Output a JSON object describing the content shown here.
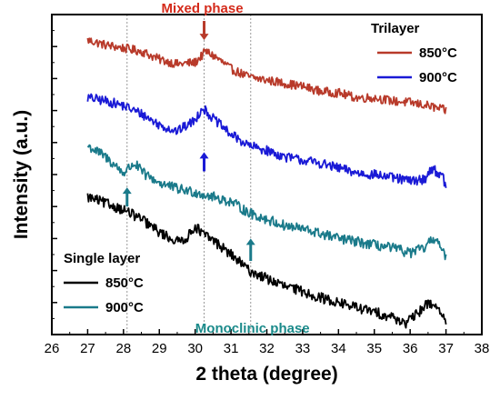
{
  "chart_data": {
    "type": "line",
    "title": "",
    "xlabel": "2 theta (degree)",
    "ylabel": "Intensity (a.u.)",
    "xlim": [
      26,
      38
    ],
    "ylim": [
      0,
      10
    ],
    "y_tick_labels_shown": false,
    "x_ticks": [
      "26",
      "27",
      "28",
      "29",
      "30",
      "31",
      "32",
      "33",
      "34",
      "35",
      "36",
      "37",
      "38"
    ],
    "legends": [
      {
        "title": "Trilayer",
        "placement": "top-right",
        "entries": [
          {
            "label": "850°C",
            "color": "#b83a2a"
          },
          {
            "label": "900°C",
            "color": "#1a1ad6"
          }
        ]
      },
      {
        "title": "Single layer",
        "placement": "bottom-left",
        "entries": [
          {
            "label": "850°C",
            "color": "#000000"
          },
          {
            "label": "900°C",
            "color": "#1a7a8a"
          }
        ]
      }
    ],
    "annotations": [
      {
        "text": "Mixed phase",
        "color": "#d42a1a",
        "x": 30.2,
        "y": 10.2
      },
      {
        "text": "Monoclinic phase",
        "color": "#1a8a8a",
        "x": 31.6,
        "y": 0.2
      }
    ],
    "vlines": [
      28.1,
      30.25,
      31.55
    ],
    "arrows": [
      {
        "x": 30.25,
        "y_from": 9.8,
        "y_to": 9.2,
        "color": "#b83a2a"
      },
      {
        "x": 30.25,
        "y_from": 5.1,
        "y_to": 5.7,
        "color": "#1a1ad6"
      },
      {
        "x": 28.1,
        "y_from": 4.0,
        "y_to": 4.6,
        "color": "#1a7a8a"
      },
      {
        "x": 31.55,
        "y_from": 2.3,
        "y_to": 3.0,
        "color": "#1a7a8a"
      }
    ],
    "series": [
      {
        "name": "Trilayer 850°C",
        "color": "#b83a2a",
        "noise": 0.14,
        "x": [
          27.0,
          27.5,
          28.0,
          28.5,
          29.0,
          29.5,
          30.0,
          30.3,
          30.6,
          31.0,
          31.5,
          32.0,
          32.5,
          33.0,
          33.5,
          34.0,
          34.5,
          35.0,
          35.5,
          36.0,
          36.5,
          37.0
        ],
        "y": [
          9.2,
          9.05,
          8.95,
          8.85,
          8.6,
          8.45,
          8.5,
          8.85,
          8.65,
          8.3,
          8.05,
          7.95,
          7.85,
          7.75,
          7.6,
          7.55,
          7.4,
          7.4,
          7.3,
          7.25,
          7.15,
          7.0
        ]
      },
      {
        "name": "Trilayer 900°C",
        "color": "#1a1ad6",
        "noise": 0.15,
        "x": [
          27.0,
          27.5,
          28.0,
          28.5,
          29.0,
          29.5,
          30.0,
          30.2,
          30.5,
          31.0,
          31.5,
          32.0,
          32.5,
          33.0,
          33.5,
          34.0,
          34.5,
          35.0,
          35.5,
          36.0,
          36.4,
          36.6,
          36.9,
          37.0
        ],
        "y": [
          7.4,
          7.3,
          7.15,
          6.9,
          6.55,
          6.35,
          6.7,
          7.1,
          6.75,
          6.25,
          5.9,
          5.75,
          5.55,
          5.45,
          5.35,
          5.2,
          5.05,
          5.0,
          4.9,
          4.8,
          4.85,
          5.2,
          4.95,
          4.6
        ]
      },
      {
        "name": "Single layer 900°C",
        "color": "#1a7a8a",
        "noise": 0.16,
        "x": [
          27.0,
          27.5,
          28.0,
          28.3,
          28.6,
          29.0,
          29.5,
          30.0,
          30.5,
          31.0,
          31.5,
          32.0,
          32.5,
          33.0,
          33.5,
          34.0,
          34.5,
          35.0,
          35.5,
          36.0,
          36.4,
          36.7,
          36.9,
          37.0
        ],
        "y": [
          5.9,
          5.55,
          5.05,
          5.35,
          5.0,
          4.75,
          4.55,
          4.45,
          4.3,
          4.15,
          3.8,
          3.6,
          3.4,
          3.3,
          3.15,
          3.0,
          2.9,
          2.8,
          2.7,
          2.55,
          2.7,
          3.05,
          2.6,
          2.35
        ]
      },
      {
        "name": "Single layer 850°C",
        "color": "#000000",
        "noise": 0.16,
        "x": [
          27.0,
          27.5,
          28.0,
          28.5,
          29.0,
          29.5,
          29.8,
          30.0,
          30.2,
          30.5,
          31.0,
          31.5,
          32.0,
          32.5,
          33.0,
          33.5,
          34.0,
          34.5,
          35.0,
          35.5,
          35.9,
          36.2,
          36.5,
          36.8,
          37.0
        ],
        "y": [
          4.3,
          4.1,
          3.9,
          3.6,
          3.2,
          2.9,
          3.05,
          3.4,
          3.15,
          2.95,
          2.5,
          2.0,
          1.75,
          1.5,
          1.35,
          1.15,
          1.0,
          0.85,
          0.7,
          0.55,
          0.35,
          0.65,
          1.0,
          0.85,
          0.3
        ]
      }
    ]
  }
}
